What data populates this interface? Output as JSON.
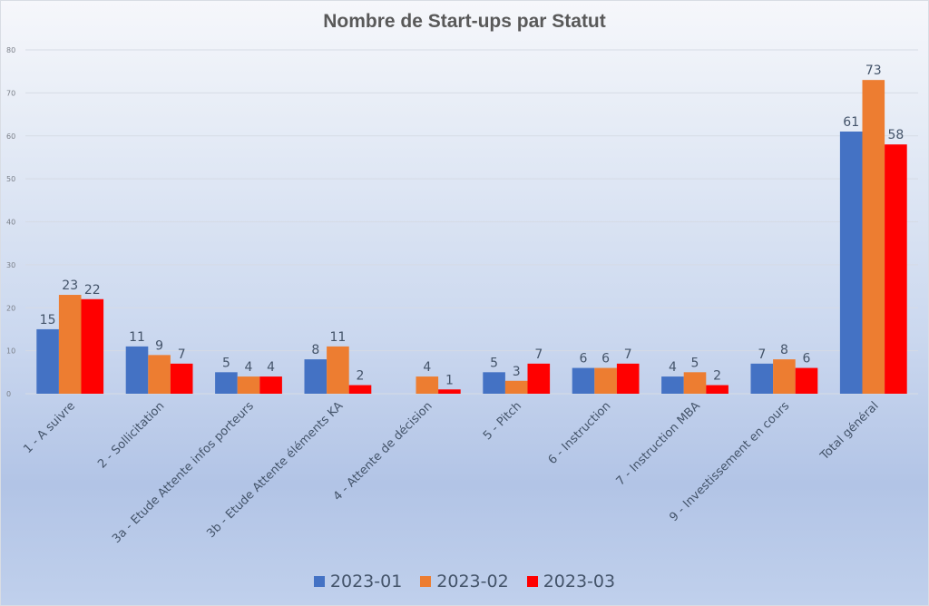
{
  "chart_data": {
    "type": "bar",
    "title": "Nombre de Start-ups par Statut",
    "xlabel": "",
    "ylabel": "",
    "ylim": [
      0,
      80
    ],
    "yticks": [
      0,
      10,
      20,
      30,
      40,
      50,
      60,
      70,
      80
    ],
    "grid": true,
    "legend_position": "bottom",
    "categories": [
      "1 - A suivre",
      "2 - Sollicitation",
      "3a - Etude Attente infos porteurs",
      "3b - Etude Attente éléments KA",
      "4 - Attente de décision",
      "5 - Pitch",
      "6 - Instruction",
      "7 - Instruction MBA",
      "9 - Investissement en cours",
      "Total général"
    ],
    "series": [
      {
        "name": "2023-01",
        "color": "#4472c4",
        "values": [
          15,
          11,
          5,
          8,
          null,
          5,
          6,
          4,
          7,
          61
        ]
      },
      {
        "name": "2023-02",
        "color": "#ed7d31",
        "values": [
          23,
          9,
          4,
          11,
          4,
          3,
          6,
          5,
          8,
          73
        ]
      },
      {
        "name": "2023-03",
        "color": "#ff0000",
        "values": [
          22,
          7,
          4,
          2,
          1,
          7,
          7,
          2,
          6,
          58
        ]
      }
    ]
  }
}
